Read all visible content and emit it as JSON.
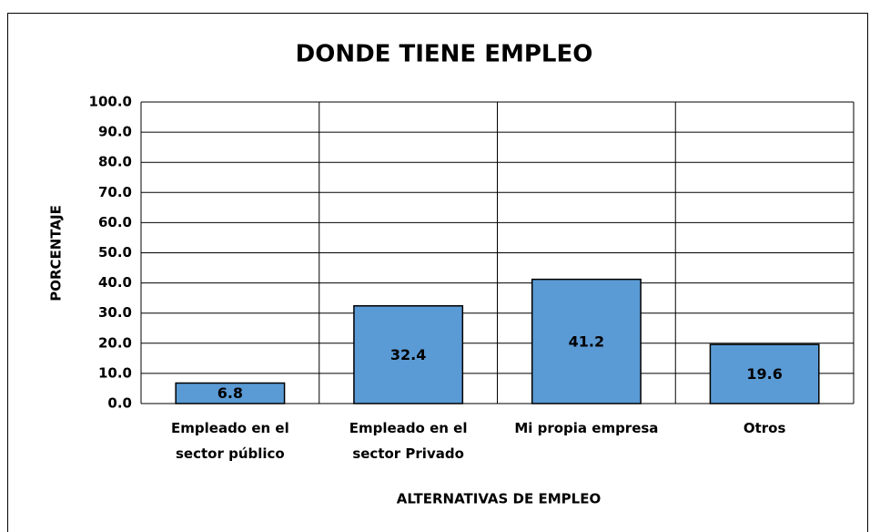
{
  "chart_data": {
    "type": "bar",
    "title": "DONDE TIENE EMPLEO",
    "x_label": "ALTERNATIVAS  DE EMPLEO",
    "y_label": "PORCENTAJE",
    "categories": [
      "Empleado en el\nsector público",
      "Empleado en el\nsector Privado",
      "Mi propia empresa",
      "Otros"
    ],
    "values": [
      6.8,
      32.4,
      41.2,
      19.6
    ],
    "color": "#5b9bd5",
    "ylim": [
      0,
      100
    ],
    "yticks": [
      {
        "value": 0,
        "label": "0.0"
      },
      {
        "value": 10,
        "label": "10.0"
      },
      {
        "value": 20,
        "label": "20.0"
      },
      {
        "value": 30,
        "label": "30.0"
      },
      {
        "value": 40,
        "label": "40.0"
      },
      {
        "value": 50,
        "label": "50.0"
      },
      {
        "value": 60,
        "label": "60.0"
      },
      {
        "value": 70,
        "label": "70.0"
      },
      {
        "value": 80,
        "label": "80.0"
      },
      {
        "value": 90,
        "label": "90.0"
      },
      {
        "value": 100,
        "label": "100.0"
      }
    ],
    "grid": true
  }
}
